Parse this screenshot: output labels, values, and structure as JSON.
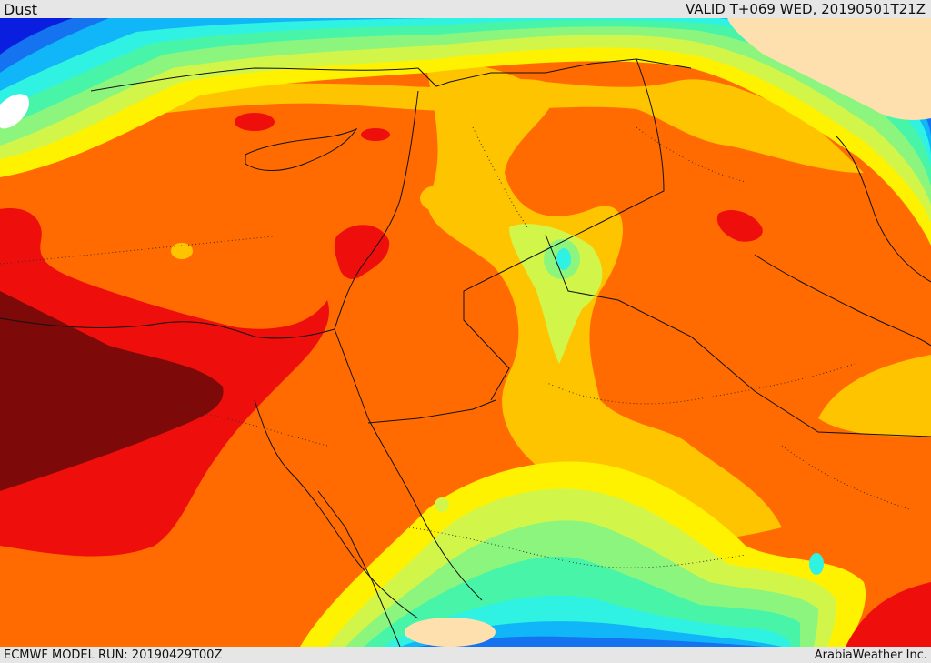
{
  "header": {
    "title": "Dust",
    "valid": "VALID T+069 WED, 20190501T21Z"
  },
  "footer": {
    "model_run": "ECMWF MODEL RUN: 20190429T00Z",
    "credit": "ArabiaWeather Inc."
  },
  "map": {
    "field": "Dust",
    "colors": {
      "land_no_data": "#fde0ae",
      "deep_blue": "#0a1ee0",
      "blue": "#1673f0",
      "light_blue": "#10b6f8",
      "cyan": "#2ff2e3",
      "aqua_green": "#48f5a8",
      "light_green": "#8cf57d",
      "yellow_green": "#d2f54a",
      "yellow": "#fff200",
      "amber": "#ffc400",
      "orange": "#ff6b00",
      "red": "#ee0e0b",
      "dark_red": "#7d0a08",
      "boundary": "#111111",
      "border_dotted": "#333333"
    }
  }
}
